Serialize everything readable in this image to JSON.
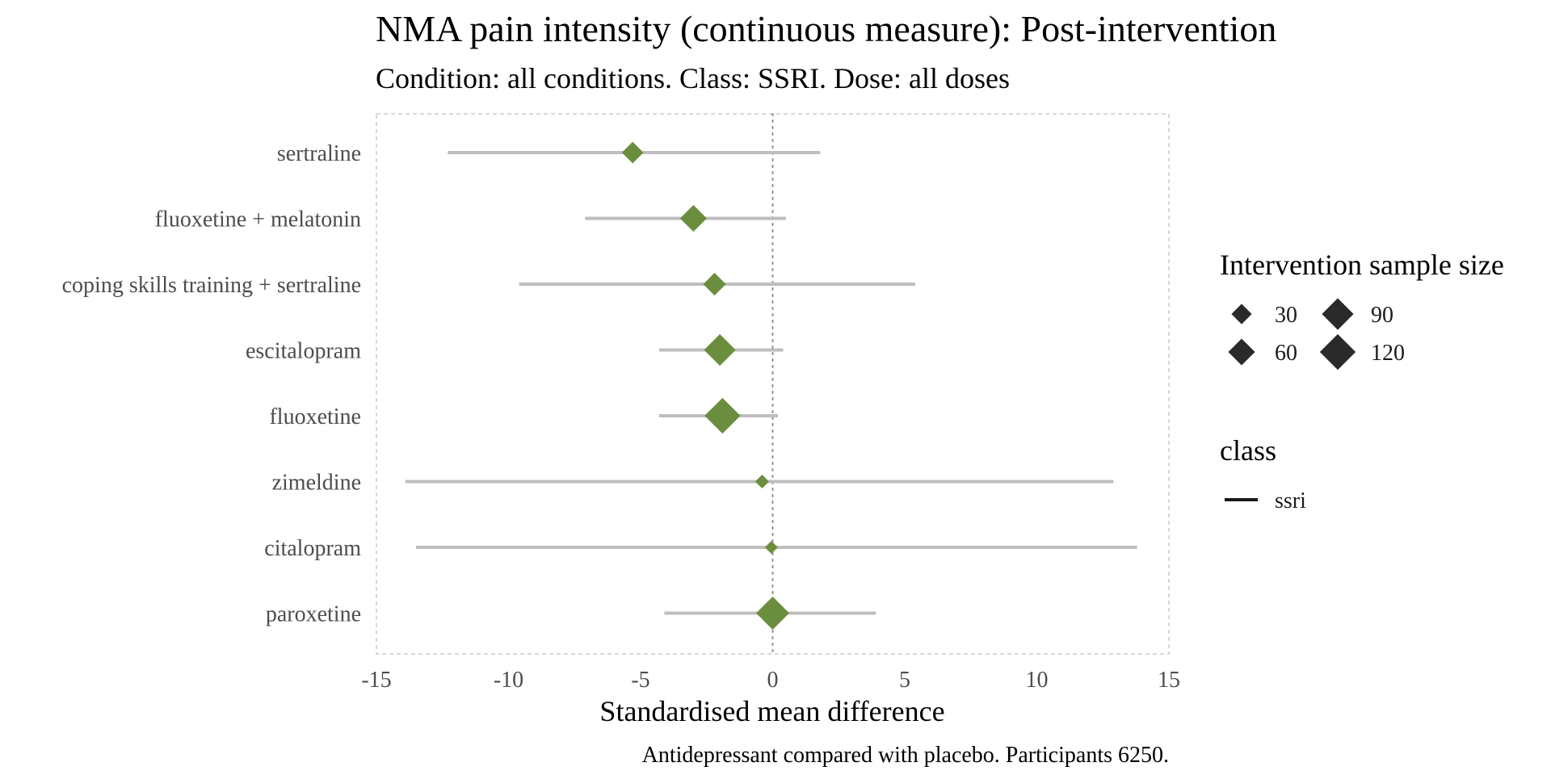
{
  "chart_data": {
    "type": "forest",
    "title": "NMA pain intensity (continuous measure): Post-intervention",
    "subtitle": "Condition: all conditions. Class: SSRI. Dose: all doses",
    "xlabel": "Standardised mean difference",
    "caption": "Antidepressant compared with placebo. Participants 6250.",
    "xlim": [
      -15,
      15
    ],
    "xticks": [
      -15,
      -10,
      -5,
      0,
      5,
      10,
      15
    ],
    "xtick_labels": [
      "-15",
      "-10",
      "-5",
      "0",
      "5",
      "10",
      "15"
    ],
    "reference_line": 0,
    "marker_color": "#6b8e3e",
    "interval_color": "#bebebe",
    "rows": [
      {
        "label": "sertraline",
        "estimate": -5.3,
        "lower": -12.3,
        "upper": 1.8,
        "sample_size": 35
      },
      {
        "label": "fluoxetine + melatonin",
        "estimate": -3.0,
        "lower": -7.1,
        "upper": 0.5,
        "sample_size": 60
      },
      {
        "label": "coping skills training + sertraline",
        "estimate": -2.2,
        "lower": -9.6,
        "upper": 5.4,
        "sample_size": 40
      },
      {
        "label": "escitalopram",
        "estimate": -2.0,
        "lower": -4.3,
        "upper": 0.4,
        "sample_size": 90
      },
      {
        "label": "fluoxetine",
        "estimate": -1.9,
        "lower": -4.3,
        "upper": 0.2,
        "sample_size": 120
      },
      {
        "label": "zimeldine",
        "estimate": -0.4,
        "lower": -13.9,
        "upper": 12.9,
        "sample_size": 10
      },
      {
        "label": "citalopram",
        "estimate": -0.05,
        "lower": -13.5,
        "upper": 13.8,
        "sample_size": 8
      },
      {
        "label": "paroxetine",
        "estimate": 0.0,
        "lower": -4.1,
        "upper": 3.9,
        "sample_size": 100
      }
    ],
    "legend": {
      "size_title": "Intervention sample size",
      "size_entries": [
        {
          "label": "30",
          "value": 30
        },
        {
          "label": "60",
          "value": 60
        },
        {
          "label": "90",
          "value": 90
        },
        {
          "label": "120",
          "value": 120
        }
      ],
      "class_title": "class",
      "class_entries": [
        {
          "label": "ssri"
        }
      ],
      "placement": "right"
    }
  }
}
